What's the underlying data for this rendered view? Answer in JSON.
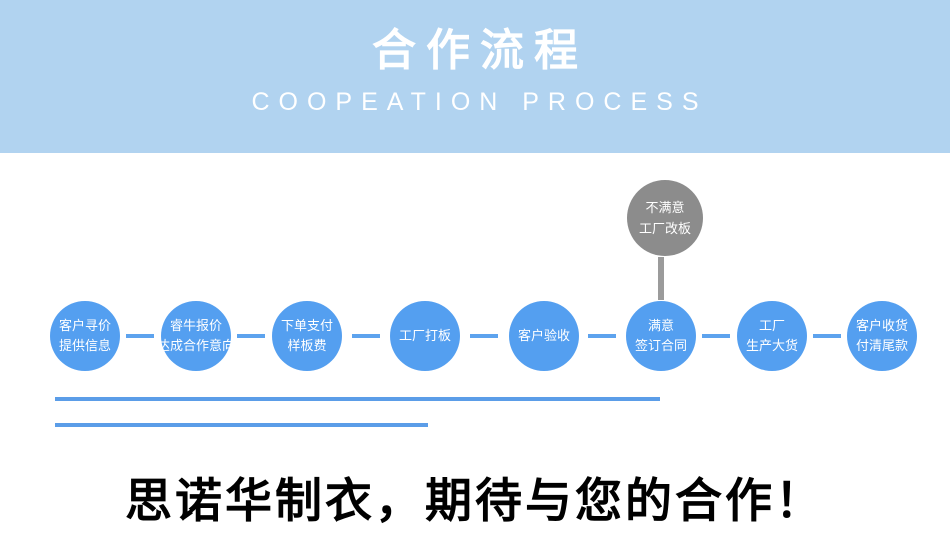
{
  "header": {
    "title": "合作流程",
    "subtitle": "COOPEATION PROCESS",
    "background_color": "#b1d3f0",
    "text_color": "#ffffff"
  },
  "flow": {
    "steps": [
      {
        "line1": "客户寻价",
        "line2": "提供信息"
      },
      {
        "line1": "睿牛报价",
        "line2": "达成合作意向"
      },
      {
        "line1": "下单支付",
        "line2": "样板费"
      },
      {
        "line1": "工厂打板",
        "line2": ""
      },
      {
        "line1": "客户验收",
        "line2": ""
      },
      {
        "line1": "满意",
        "line2": "签订合同"
      },
      {
        "line1": "工厂",
        "line2": "生产大货"
      },
      {
        "line1": "客户收货",
        "line2": "付清尾款"
      }
    ],
    "alt_step": {
      "line1": "不满意",
      "line2": "工厂改板"
    },
    "circle_color": "#549ff0",
    "alt_circle_color": "#8c8c8c",
    "connector_color": "#5da3ee",
    "alt_connector_color": "#9b9b9b",
    "underline_color": "#5b9de8"
  },
  "footer": {
    "slogan": "思诺华制衣，期待与您的合作！",
    "text_color": "#000000"
  }
}
